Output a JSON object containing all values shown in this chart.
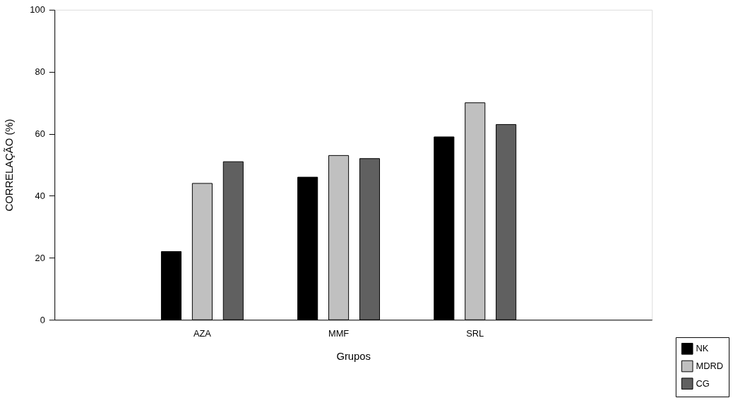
{
  "chart_data": {
    "type": "bar",
    "xlabel": "Grupos",
    "ylabel": "CORRELAÇÃO (%)",
    "categories": [
      "AZA",
      "MMF",
      "SRL"
    ],
    "series": [
      {
        "name": "NK",
        "color": "#000000",
        "values": [
          22,
          46,
          59
        ]
      },
      {
        "name": "MDRD",
        "color": "#c0c0c0",
        "values": [
          44,
          53,
          70
        ]
      },
      {
        "name": "CG",
        "color": "#606060",
        "values": [
          51,
          52,
          63
        ]
      }
    ],
    "ylim": [
      0,
      100
    ],
    "yticks": [
      0,
      20,
      40,
      60,
      80,
      100
    ],
    "grid": false,
    "legend": "bottom right"
  }
}
